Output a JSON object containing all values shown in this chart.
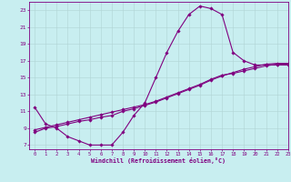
{
  "xlabel": "Windchill (Refroidissement éolien,°C)",
  "xlim": [
    -0.5,
    23
  ],
  "ylim": [
    6.5,
    24
  ],
  "xticks": [
    0,
    1,
    2,
    3,
    4,
    5,
    6,
    7,
    8,
    9,
    10,
    11,
    12,
    13,
    14,
    15,
    16,
    17,
    18,
    19,
    20,
    21,
    22,
    23
  ],
  "yticks": [
    7,
    9,
    11,
    13,
    15,
    17,
    19,
    21,
    23
  ],
  "bg_color": "#c8eef0",
  "line_color": "#800080",
  "grid_color": "#b0d4d4",
  "curve1_x": [
    0,
    1,
    2,
    3,
    4,
    5,
    6,
    7,
    8,
    9,
    10,
    11,
    12,
    13,
    14,
    15,
    16,
    17,
    18,
    19,
    20,
    21,
    22,
    23
  ],
  "curve1_y": [
    11.5,
    9.5,
    9.0,
    8.0,
    7.5,
    7.0,
    7.0,
    7.0,
    8.5,
    10.5,
    12.0,
    15.0,
    18.0,
    20.5,
    22.5,
    23.5,
    23.2,
    22.5,
    18.0,
    17.0,
    16.5,
    16.5,
    16.5,
    16.5
  ],
  "curve2_x": [
    0,
    1,
    2,
    3,
    4,
    5,
    6,
    7,
    8,
    9,
    10,
    11,
    12,
    13,
    14,
    15,
    16,
    17,
    18,
    19,
    20,
    21,
    22,
    23
  ],
  "curve2_y": [
    8.5,
    9.0,
    9.2,
    9.5,
    9.8,
    10.0,
    10.3,
    10.5,
    11.0,
    11.3,
    11.7,
    12.1,
    12.6,
    13.1,
    13.6,
    14.1,
    14.7,
    15.2,
    15.6,
    16.0,
    16.3,
    16.6,
    16.7,
    16.7
  ],
  "curve3_x": [
    0,
    1,
    2,
    3,
    4,
    5,
    6,
    7,
    8,
    9,
    10,
    11,
    12,
    13,
    14,
    15,
    16,
    17,
    18,
    19,
    20,
    21,
    22,
    23
  ],
  "curve3_y": [
    8.8,
    9.1,
    9.4,
    9.7,
    10.0,
    10.3,
    10.6,
    10.9,
    11.2,
    11.5,
    11.8,
    12.2,
    12.7,
    13.2,
    13.7,
    14.2,
    14.8,
    15.3,
    15.5,
    15.8,
    16.1,
    16.4,
    16.6,
    16.6
  ]
}
